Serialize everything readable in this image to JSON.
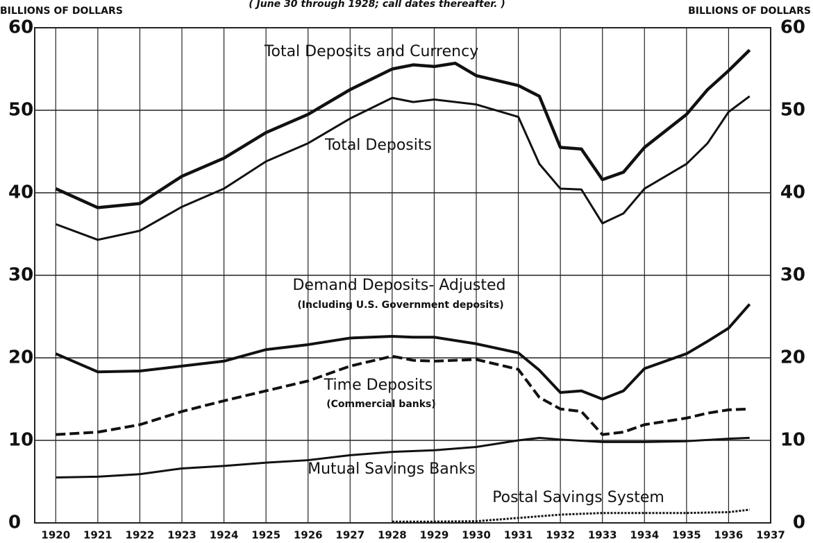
{
  "chart_data": {
    "type": "line",
    "title": "( June 30 through 1928;  call dates thereafter. )",
    "ylabel": "BILLIONS OF DOLLARS",
    "y2label": "BILLIONS OF DOLLARS",
    "xlim": [
      1919.5,
      1937
    ],
    "xticks": [
      1920,
      1921,
      1922,
      1923,
      1924,
      1925,
      1926,
      1927,
      1928,
      1929,
      1930,
      1931,
      1932,
      1933,
      1934,
      1935,
      1936,
      1937
    ],
    "ylim": [
      0,
      60
    ],
    "yticks": [
      0,
      10,
      20,
      30,
      40,
      50,
      60
    ],
    "y2lim": [
      0,
      60
    ],
    "y2ticks": [
      0,
      10,
      20,
      30,
      40,
      50,
      60
    ],
    "grid": true,
    "series": [
      {
        "name": "Total Deposits and Currency",
        "color": "#111111",
        "style": "solid",
        "width": 4.5,
        "x": [
          1920,
          1921,
          1922,
          1923,
          1924,
          1925,
          1926,
          1927,
          1928,
          1928.5,
          1929,
          1929.5,
          1930,
          1931,
          1931.5,
          1932,
          1932.5,
          1933,
          1933.5,
          1934,
          1935,
          1935.5,
          1936,
          1936.5
        ],
        "values": [
          40.5,
          38.2,
          38.7,
          42,
          44.2,
          47.3,
          49.5,
          52.5,
          55,
          55.5,
          55.3,
          55.7,
          54.2,
          53,
          51.7,
          45.5,
          45.3,
          41.6,
          42.5,
          45.5,
          49.5,
          52.5,
          54.8,
          57.3
        ]
      },
      {
        "name": "Total Deposits",
        "color": "#111111",
        "style": "solid",
        "width": 3,
        "x": [
          1920,
          1921,
          1922,
          1923,
          1924,
          1925,
          1926,
          1927,
          1928,
          1928.5,
          1929,
          1930,
          1931,
          1931.5,
          1932,
          1932.5,
          1933,
          1933.5,
          1934,
          1935,
          1935.5,
          1936,
          1936.5
        ],
        "values": [
          36.2,
          34.3,
          35.4,
          38.3,
          40.5,
          43.8,
          46,
          49,
          51.5,
          51,
          51.3,
          50.7,
          49.2,
          43.5,
          40.5,
          40.4,
          36.3,
          37.5,
          40.5,
          43.5,
          46,
          49.8,
          51.7
        ]
      },
      {
        "name": "Demand Deposits- Adjusted",
        "color": "#111111",
        "style": "solid",
        "width": 4,
        "x": [
          1920,
          1921,
          1922,
          1923,
          1924,
          1925,
          1926,
          1927,
          1928,
          1928.5,
          1929,
          1930,
          1931,
          1931.5,
          1932,
          1932.5,
          1933,
          1933.5,
          1934,
          1935,
          1935.5,
          1936,
          1936.5
        ],
        "values": [
          20.5,
          18.3,
          18.4,
          19,
          19.6,
          21,
          21.6,
          22.4,
          22.6,
          22.5,
          22.5,
          21.7,
          20.6,
          18.5,
          15.8,
          16,
          15,
          16,
          18.7,
          20.5,
          22,
          23.6,
          26.5
        ]
      },
      {
        "name": "Time Deposits",
        "color": "#111111",
        "style": "dashed",
        "width": 4,
        "x": [
          1920,
          1921,
          1922,
          1923,
          1924,
          1925,
          1926,
          1927,
          1928,
          1928.5,
          1929,
          1930,
          1931,
          1931.5,
          1932,
          1932.5,
          1933,
          1933.5,
          1934,
          1935,
          1935.5,
          1936,
          1936.5
        ],
        "values": [
          10.7,
          11,
          11.9,
          13.5,
          14.8,
          16,
          17.2,
          19,
          20.2,
          19.7,
          19.6,
          19.8,
          18.6,
          15.2,
          13.8,
          13.5,
          10.7,
          11,
          11.9,
          12.7,
          13.3,
          13.7,
          13.8
        ]
      },
      {
        "name": "Mutual Savings Banks",
        "color": "#111111",
        "style": "solid",
        "width": 3,
        "x": [
          1920,
          1921,
          1922,
          1923,
          1924,
          1925,
          1926,
          1927,
          1928,
          1929,
          1930,
          1931,
          1931.5,
          1932,
          1933,
          1934,
          1935,
          1936,
          1936.5
        ],
        "values": [
          5.5,
          5.6,
          5.9,
          6.6,
          6.9,
          7.3,
          7.6,
          8.2,
          8.6,
          8.8,
          9.2,
          10,
          10.3,
          10.1,
          9.8,
          9.8,
          9.9,
          10.2,
          10.3
        ]
      },
      {
        "name": "Postal Savings System",
        "color": "#111111",
        "style": "dotted",
        "width": 3,
        "x": [
          1928,
          1929,
          1930,
          1931,
          1932,
          1933,
          1934,
          1935,
          1936,
          1936.5
        ],
        "values": [
          0.15,
          0.15,
          0.2,
          0.6,
          1,
          1.2,
          1.2,
          1.2,
          1.3,
          1.6
        ]
      }
    ],
    "annotations": [
      "(Including U.S. Government deposits)",
      "(Commercial banks)"
    ]
  }
}
